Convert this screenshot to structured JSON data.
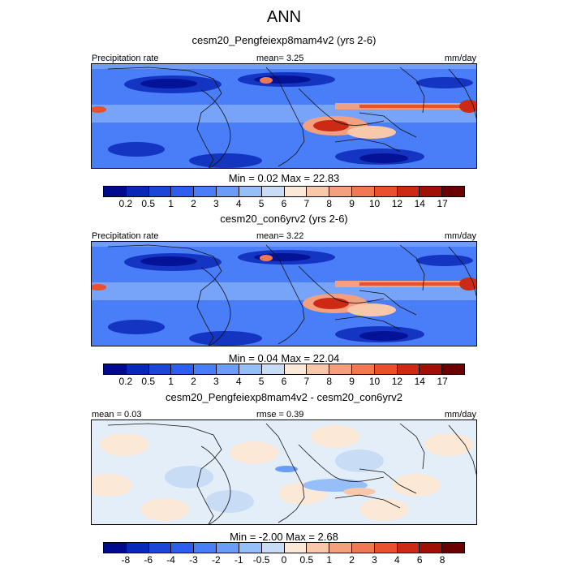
{
  "figure_title": "ANN",
  "colors": {
    "abs_palette": [
      "#000a8c",
      "#0a28b8",
      "#1e46d6",
      "#2e5ef0",
      "#4a7df8",
      "#6a9cf8",
      "#96bef8",
      "#c8dcf6",
      "#fbe8d6",
      "#f8c8aa",
      "#f4a07e",
      "#f07852",
      "#e8502e",
      "#cc2a14",
      "#a01008",
      "#6a0000"
    ],
    "diff_palette": [
      "#000a8c",
      "#0a28b8",
      "#1e46d6",
      "#2e5ef0",
      "#4a7df8",
      "#6a9cf8",
      "#96bef8",
      "#c8dcf6",
      "#fbe8d6",
      "#f8c8aa",
      "#f4a07e",
      "#f07852",
      "#e8502e",
      "#cc2a14",
      "#a01008",
      "#6a0000"
    ]
  },
  "chart_data": [
    {
      "type": "heatmap",
      "subtitle": "cesm20_Pengfeiexp8mam4v2 (yrs 2-6)",
      "field_label": "Precipitation rate",
      "stat_text": "mean=   3.25",
      "units": "mm/day",
      "min": 0.02,
      "max": 22.83,
      "minmax_text": "Min =   0.02 Max =  22.83",
      "colorbar_levels": [
        "0.2",
        "0.5",
        "1",
        "2",
        "3",
        "4",
        "5",
        "6",
        "7",
        "8",
        "9",
        "10",
        "12",
        "14",
        "17"
      ]
    },
    {
      "type": "heatmap",
      "subtitle": "cesm20_con6yrv2 (yrs 2-6)",
      "field_label": "Precipitation rate",
      "stat_text": "mean=   3.22",
      "units": "mm/day",
      "min": 0.04,
      "max": 22.04,
      "minmax_text": "Min =   0.04 Max =  22.04",
      "colorbar_levels": [
        "0.2",
        "0.5",
        "1",
        "2",
        "3",
        "4",
        "5",
        "6",
        "7",
        "8",
        "9",
        "10",
        "12",
        "14",
        "17"
      ]
    },
    {
      "type": "heatmap",
      "subtitle": "cesm20_Pengfeiexp8mam4v2 - cesm20_con6yrv2",
      "field_label": "mean =   0.03",
      "stat_text": "rmse =   0.39",
      "units": "mm/day",
      "min": -2.0,
      "max": 2.68,
      "minmax_text": "Min =  -2.00 Max =   2.68",
      "colorbar_levels": [
        "-8",
        "-6",
        "-4",
        "-3",
        "-2",
        "-1",
        "-0.5",
        "0",
        "0.5",
        "1",
        "2",
        "3",
        "4",
        "6",
        "8"
      ]
    }
  ]
}
